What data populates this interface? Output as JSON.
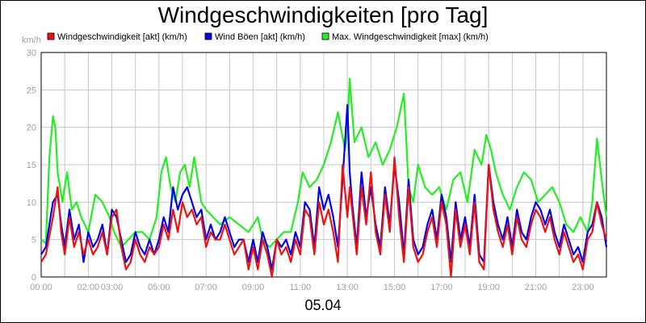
{
  "chart_data": {
    "type": "line",
    "title": "Windgeschwindigkeiten [pro Tag]",
    "subtitle": "05.04",
    "ylabel": "km/h",
    "ylim": [
      0,
      30
    ],
    "yticks": [
      "0",
      "5",
      "10",
      "15",
      "20",
      "25",
      "30"
    ],
    "xlim": [
      0,
      24
    ],
    "xtick_labels": [
      "00:00",
      "02:00",
      "03:00",
      "05:00",
      "07:00",
      "09:00",
      "11:00",
      "13:00",
      "15:00",
      "17:00",
      "19:00",
      "21:00",
      "23:00"
    ],
    "grid": true,
    "legend_position": "top",
    "series": [
      {
        "name": "Windgeschwindigkeit [akt] (km/h)",
        "color": "#ee1111",
        "x": [
          0.0,
          0.2,
          0.5,
          0.7,
          0.85,
          1.0,
          1.2,
          1.4,
          1.6,
          1.8,
          2.0,
          2.2,
          2.4,
          2.6,
          2.8,
          3.0,
          3.2,
          3.4,
          3.6,
          3.8,
          4.0,
          4.2,
          4.4,
          4.6,
          4.8,
          5.0,
          5.2,
          5.4,
          5.6,
          5.8,
          6.0,
          6.2,
          6.4,
          6.6,
          6.8,
          7.0,
          7.2,
          7.4,
          7.6,
          7.8,
          8.0,
          8.2,
          8.4,
          8.6,
          8.8,
          9.0,
          9.2,
          9.4,
          9.6,
          9.8,
          10.0,
          10.2,
          10.4,
          10.6,
          10.8,
          11.0,
          11.2,
          11.4,
          11.6,
          11.8,
          12.0,
          12.2,
          12.4,
          12.6,
          12.8,
          13.0,
          13.1,
          13.2,
          13.4,
          13.6,
          13.8,
          14.0,
          14.2,
          14.4,
          14.6,
          14.8,
          15.0,
          15.2,
          15.4,
          15.6,
          15.8,
          16.0,
          16.2,
          16.4,
          16.6,
          16.8,
          17.0,
          17.2,
          17.4,
          17.6,
          17.8,
          18.0,
          18.2,
          18.4,
          18.6,
          18.8,
          19.0,
          19.2,
          19.4,
          19.6,
          19.8,
          20.0,
          20.2,
          20.4,
          20.6,
          20.8,
          21.0,
          21.2,
          21.4,
          21.6,
          21.8,
          22.0,
          22.2,
          22.4,
          22.6,
          22.8,
          23.0,
          23.2,
          23.4,
          23.6,
          23.8,
          24.0
        ],
        "y": [
          2,
          3,
          8,
          12,
          6,
          3,
          8,
          4,
          6,
          3,
          5,
          3,
          4,
          6,
          3,
          8,
          9,
          4,
          1,
          2,
          5,
          3,
          2,
          4,
          3,
          4,
          7,
          5,
          9,
          6,
          10,
          8,
          9,
          7,
          8,
          4,
          6,
          5,
          5,
          7,
          5,
          3,
          4,
          5,
          1,
          4,
          1,
          5,
          3,
          0,
          5,
          3,
          4,
          2,
          5,
          3,
          9,
          8,
          3,
          10,
          7,
          9,
          6,
          2,
          15,
          8,
          12,
          9,
          3,
          12,
          7,
          14,
          6,
          3,
          11,
          6,
          16,
          8,
          2,
          12,
          4,
          2,
          3,
          6,
          8,
          4,
          10,
          7,
          0,
          9,
          4,
          7,
          3,
          10,
          2,
          1,
          15,
          9,
          6,
          4,
          7,
          3,
          8,
          5,
          4,
          7,
          9,
          8,
          6,
          8,
          5,
          3,
          6,
          4,
          2,
          3,
          1,
          5,
          6,
          10,
          7,
          5
        ]
      },
      {
        "name": "Wind Böen [akt] (km/h)",
        "color": "#0000ee",
        "x": [
          0.0,
          0.2,
          0.5,
          0.7,
          0.85,
          1.0,
          1.2,
          1.4,
          1.6,
          1.8,
          2.0,
          2.2,
          2.4,
          2.6,
          2.8,
          3.0,
          3.2,
          3.4,
          3.6,
          3.8,
          4.0,
          4.2,
          4.4,
          4.6,
          4.8,
          5.0,
          5.2,
          5.4,
          5.6,
          5.8,
          6.0,
          6.2,
          6.4,
          6.6,
          6.8,
          7.0,
          7.2,
          7.4,
          7.6,
          7.8,
          8.0,
          8.2,
          8.4,
          8.6,
          8.8,
          9.0,
          9.2,
          9.4,
          9.6,
          9.8,
          10.0,
          10.2,
          10.4,
          10.6,
          10.8,
          11.0,
          11.2,
          11.4,
          11.6,
          11.8,
          12.0,
          12.2,
          12.4,
          12.6,
          12.8,
          13.0,
          13.1,
          13.2,
          13.4,
          13.6,
          13.8,
          14.0,
          14.2,
          14.4,
          14.6,
          14.8,
          15.0,
          15.2,
          15.4,
          15.6,
          15.8,
          16.0,
          16.2,
          16.4,
          16.6,
          16.8,
          17.0,
          17.2,
          17.4,
          17.6,
          17.8,
          18.0,
          18.2,
          18.4,
          18.6,
          18.8,
          19.0,
          19.2,
          19.4,
          19.6,
          19.8,
          20.0,
          20.2,
          20.4,
          20.6,
          20.8,
          21.0,
          21.2,
          21.4,
          21.6,
          21.8,
          22.0,
          22.2,
          22.4,
          22.6,
          22.8,
          23.0,
          23.2,
          23.4,
          23.6,
          23.8,
          24.0
        ],
        "y": [
          3,
          4,
          10,
          11,
          7,
          4,
          9,
          5,
          7,
          2,
          6,
          4,
          5,
          7,
          3,
          9,
          8,
          5,
          2,
          3,
          6,
          4,
          3,
          5,
          3,
          5,
          8,
          6,
          12,
          9,
          11,
          12,
          10,
          8,
          9,
          5,
          7,
          5,
          6,
          8,
          6,
          4,
          5,
          5,
          2,
          5,
          2,
          6,
          4,
          1,
          5,
          4,
          5,
          3,
          6,
          4,
          10,
          9,
          4,
          12,
          9,
          11,
          8,
          4,
          13,
          23,
          14,
          10,
          4,
          14,
          8,
          12,
          7,
          4,
          12,
          7,
          15,
          10,
          3,
          13,
          5,
          3,
          4,
          7,
          9,
          5,
          11,
          8,
          2,
          10,
          5,
          8,
          4,
          11,
          3,
          2,
          15,
          10,
          7,
          5,
          8,
          4,
          9,
          6,
          5,
          8,
          10,
          9,
          7,
          9,
          6,
          4,
          7,
          5,
          3,
          4,
          2,
          6,
          7,
          10,
          8,
          4
        ]
      },
      {
        "name": "Max. Windgeschwindigkeit [max] (km/h)",
        "color": "#22ee22",
        "x": [
          0.0,
          0.2,
          0.35,
          0.5,
          0.6,
          0.7,
          0.9,
          1.1,
          1.3,
          1.5,
          1.7,
          2.0,
          2.3,
          2.6,
          2.9,
          3.1,
          3.4,
          3.7,
          4.0,
          4.3,
          4.6,
          4.9,
          5.1,
          5.3,
          5.5,
          5.7,
          5.9,
          6.1,
          6.3,
          6.5,
          6.8,
          7.0,
          7.3,
          7.6,
          8.0,
          8.4,
          8.8,
          9.2,
          9.4,
          9.7,
          10.0,
          10.3,
          10.6,
          10.9,
          11.1,
          11.4,
          11.7,
          12.0,
          12.3,
          12.6,
          12.9,
          13.0,
          13.1,
          13.3,
          13.6,
          13.9,
          14.2,
          14.5,
          14.8,
          15.1,
          15.4,
          15.6,
          15.8,
          16.0,
          16.3,
          16.6,
          16.9,
          17.2,
          17.5,
          17.8,
          18.1,
          18.4,
          18.7,
          18.9,
          19.1,
          19.3,
          19.6,
          19.9,
          20.2,
          20.5,
          20.8,
          21.1,
          21.4,
          21.7,
          22.0,
          22.3,
          22.6,
          22.9,
          23.2,
          23.4,
          23.6,
          23.8,
          24.0
        ],
        "y": [
          5,
          4.5,
          16,
          21.5,
          20,
          14,
          10,
          14,
          9,
          10,
          8,
          6,
          11,
          10,
          8,
          6,
          4,
          5,
          6,
          6,
          5,
          8,
          14,
          16,
          12,
          10,
          14,
          15,
          12,
          16,
          10,
          9,
          8,
          7,
          8,
          7,
          6,
          8,
          5,
          4,
          5,
          6,
          6,
          10,
          14,
          12,
          13,
          15,
          18,
          22,
          17,
          20,
          26.5,
          18,
          20,
          16,
          18,
          15,
          17,
          20,
          24.5,
          12,
          10,
          15,
          12,
          11,
          12,
          9,
          13,
          14,
          10,
          17,
          15,
          19,
          17,
          14,
          11,
          9,
          12,
          14,
          13,
          10,
          11,
          12,
          10,
          7,
          6,
          8,
          6,
          10,
          18.5,
          13,
          8
        ]
      }
    ]
  }
}
